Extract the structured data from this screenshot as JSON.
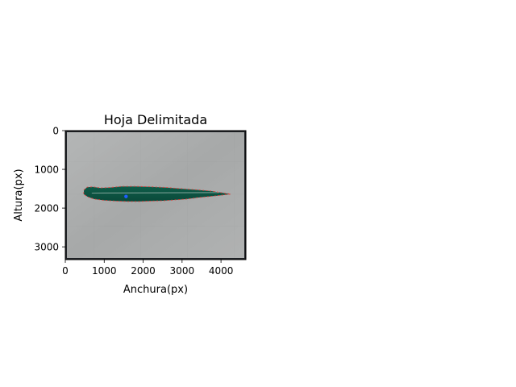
{
  "chart_data": {
    "type": "image",
    "title": "Hoja Delimitada",
    "xlabel": "Anchura(px)",
    "ylabel": "Altura(px)",
    "xlim": [
      0,
      4640
    ],
    "ylim": [
      3330,
      0
    ],
    "xticks": [
      0,
      1000,
      2000,
      3000,
      4000
    ],
    "yticks": [
      0,
      1000,
      2000,
      3000
    ],
    "leaf_outline": {
      "color": "#e53935",
      "points": [
        [
          480,
          1530
        ],
        [
          560,
          1460
        ],
        [
          700,
          1450
        ],
        [
          900,
          1480
        ],
        [
          1150,
          1470
        ],
        [
          1450,
          1440
        ],
        [
          1800,
          1440
        ],
        [
          2200,
          1450
        ],
        [
          2600,
          1470
        ],
        [
          3000,
          1500
        ],
        [
          3400,
          1530
        ],
        [
          3750,
          1560
        ],
        [
          4000,
          1600
        ],
        [
          4250,
          1640
        ],
        [
          4000,
          1670
        ],
        [
          3700,
          1700
        ],
        [
          3400,
          1730
        ],
        [
          3100,
          1770
        ],
        [
          2800,
          1790
        ],
        [
          2500,
          1810
        ],
        [
          2200,
          1820
        ],
        [
          1900,
          1830
        ],
        [
          1600,
          1830
        ],
        [
          1300,
          1820
        ],
        [
          1000,
          1800
        ],
        [
          750,
          1770
        ],
        [
          580,
          1710
        ],
        [
          470,
          1640
        ]
      ]
    },
    "centroid": {
      "x": 1560,
      "y": 1700,
      "color": "#1e5eff"
    }
  }
}
